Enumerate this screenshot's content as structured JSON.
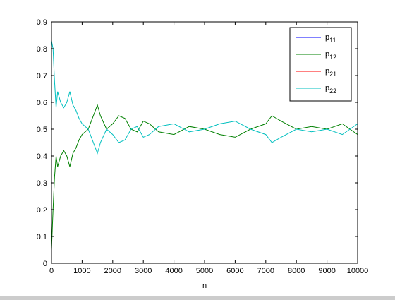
{
  "chart_data": {
    "type": "line",
    "title": "",
    "xlabel": "n",
    "ylabel": "",
    "xlim": [
      0,
      10000
    ],
    "ylim": [
      0,
      0.9
    ],
    "xticks": [
      0,
      1000,
      2000,
      3000,
      4000,
      5000,
      6000,
      7000,
      8000,
      9000,
      10000
    ],
    "yticks": [
      0,
      0.1,
      0.2,
      0.3,
      0.4,
      0.5,
      0.6,
      0.7,
      0.8,
      0.9
    ],
    "xtick_labels": [
      "0",
      "1000",
      "2000",
      "3000",
      "4000",
      "5000",
      "6000",
      "7000",
      "8000",
      "9000",
      "10000"
    ],
    "ytick_labels": [
      "0",
      "0.1",
      "0.2",
      "0.3",
      "0.4",
      "0.5",
      "0.6",
      "0.7",
      "0.8",
      "0.9"
    ],
    "grid": false,
    "legend": {
      "placement": "top-right",
      "entries": [
        {
          "base": "p",
          "sub": "11",
          "color": "#0000ff"
        },
        {
          "base": "p",
          "sub": "12",
          "color": "#008000"
        },
        {
          "base": "p",
          "sub": "21",
          "color": "#ff0000"
        },
        {
          "base": "p",
          "sub": "22",
          "color": "#00bfbf"
        }
      ]
    },
    "series": [
      {
        "name": "p12",
        "color": "#008000",
        "x": [
          0,
          50,
          100,
          150,
          200,
          300,
          400,
          500,
          600,
          700,
          800,
          900,
          1000,
          1200,
          1400,
          1500,
          1600,
          1800,
          2000,
          2200,
          2400,
          2600,
          2800,
          3000,
          3200,
          3500,
          4000,
          4500,
          5000,
          5500,
          6000,
          6500,
          7000,
          7200,
          7500,
          8000,
          8500,
          9000,
          9500,
          10000
        ],
        "values": [
          0.05,
          0.2,
          0.32,
          0.4,
          0.36,
          0.4,
          0.42,
          0.4,
          0.36,
          0.41,
          0.43,
          0.46,
          0.48,
          0.5,
          0.56,
          0.59,
          0.55,
          0.5,
          0.52,
          0.55,
          0.54,
          0.5,
          0.49,
          0.53,
          0.52,
          0.49,
          0.48,
          0.51,
          0.5,
          0.48,
          0.47,
          0.5,
          0.52,
          0.55,
          0.53,
          0.5,
          0.51,
          0.5,
          0.52,
          0.48
        ]
      },
      {
        "name": "p22",
        "color": "#00bfbf",
        "x": [
          0,
          50,
          100,
          150,
          200,
          300,
          400,
          500,
          600,
          700,
          800,
          900,
          1000,
          1200,
          1400,
          1500,
          1600,
          1800,
          2000,
          2200,
          2400,
          2600,
          2800,
          3000,
          3200,
          3500,
          4000,
          4500,
          5000,
          5500,
          6000,
          6500,
          7000,
          7200,
          7500,
          8000,
          8500,
          9000,
          9500,
          10000
        ],
        "values": [
          0.83,
          0.8,
          0.68,
          0.58,
          0.64,
          0.6,
          0.58,
          0.6,
          0.64,
          0.59,
          0.57,
          0.54,
          0.52,
          0.5,
          0.44,
          0.41,
          0.45,
          0.5,
          0.48,
          0.45,
          0.46,
          0.5,
          0.51,
          0.47,
          0.48,
          0.51,
          0.52,
          0.49,
          0.5,
          0.52,
          0.53,
          0.5,
          0.48,
          0.45,
          0.47,
          0.5,
          0.49,
          0.5,
          0.48,
          0.52
        ]
      }
    ]
  }
}
